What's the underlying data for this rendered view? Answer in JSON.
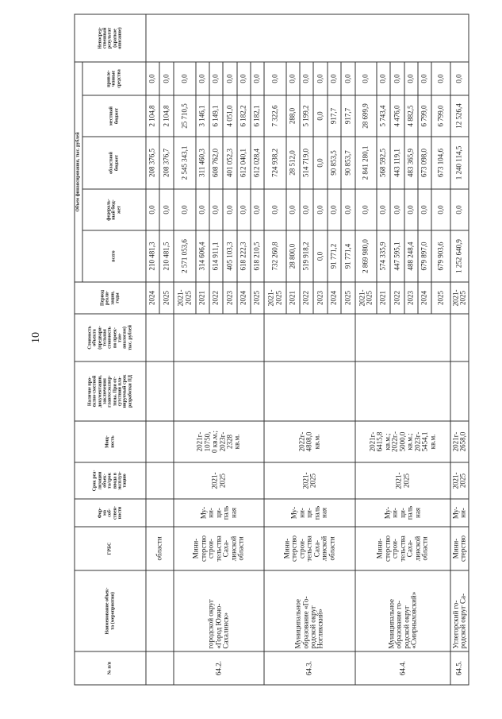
{
  "page_number": "10",
  "headers": {
    "num": "№ п/п",
    "name": "Наименование объек-\nта (мероприятия)",
    "grbs": "ГРБС",
    "form": "Фор-\nма\nсоб-\nствен-\nности",
    "term": "Срок реа-\nлизации\nобъек-\nта/срок\nввода в\nэксплуа-\nтацию",
    "capacity": "Мощ-\nность",
    "psd": "Наличие про-\nектно-сметной\nдокументации,\nзаключения\nглавгосэкспер-\nтизы. При от-\nсутствии пла-\nнируемый срок\nразработки ПД",
    "cost": "Стоимость\nобъекта\n(предвари-\nтельная\nстоимость\nпо проек-\nтам-\nаналогам)\nтыс. рублей",
    "period": "Период\nреали-\nзации,\nгоды",
    "funding": "Объем финансирования, тыс. рублей",
    "total": "всего",
    "federal": "федераль-\nный бюд-\nжет",
    "regional": "областной\nбюджет",
    "local": "местный\nбюджет",
    "attracted": "привле-\nченные\nсредства",
    "result": "Непосред-\nственный\nрезультат\n(краткое\nописание)"
  },
  "groups": [
    {
      "num": "",
      "name": "",
      "grbs": "области",
      "form": "",
      "term": "",
      "capacity": "",
      "rows": [
        {
          "period": "2024",
          "total": "210 481,3",
          "federal": "0,0",
          "regional": "208 376,5",
          "local": "2 104,8",
          "attracted": "0,0"
        },
        {
          "period": "2025",
          "total": "210 481,5",
          "federal": "0,0",
          "regional": "208 376,7",
          "local": "2 104,8",
          "attracted": "0,0"
        }
      ]
    },
    {
      "num": "64.2.",
      "name": "городской округ\n«Город Южно-\nСахалинск»",
      "grbs": "Мини-\nстерство\nстрои-\nтельства\nСаха-\nлинской\nобласти",
      "form": "Му-\nни-\nци-\nпаль\nная",
      "term": "2021-\n2025",
      "capacity": "2021г-\n10750,\n0 кв.м.;\n2023г-\n2328\nкв.м.",
      "rows": [
        {
          "period": "2021-\n2025",
          "total": "2 571 053,6",
          "federal": "0,0",
          "regional": "2 545 343,1",
          "local": "25 710,5",
          "attracted": "0,0"
        },
        {
          "period": "2021",
          "total": "314 606,4",
          "federal": "0,0",
          "regional": "311 460,3",
          "local": "3 146,1",
          "attracted": "0,0"
        },
        {
          "period": "2022",
          "total": "614 911,1",
          "federal": "0,0",
          "regional": "608 762,0",
          "local": "6 149,1",
          "attracted": "0,0"
        },
        {
          "period": "2023",
          "total": "405 103,3",
          "federal": "0,0",
          "regional": "401 052,3",
          "local": "4 051,0",
          "attracted": "0,0"
        },
        {
          "period": "2024",
          "total": "618 222,3",
          "federal": "0,0",
          "regional": "612 040,1",
          "local": "6 182,2",
          "attracted": "0,0"
        },
        {
          "period": "2025",
          "total": "618 210,5",
          "federal": "0,0",
          "regional": "612 028,4",
          "local": "6 182,1",
          "attracted": "0,0"
        }
      ]
    },
    {
      "num": "64.3.",
      "name": "Муниципальное\nобразование «Го-\nродской округ\nНогликский»",
      "grbs": "Мини-\nстерство\nстрои-\nтельства\nСаха-\nлинской\nобласти",
      "form": "Му-\nни-\nци-\nпаль\nная",
      "term": "2021-\n2025",
      "capacity": "2022г-\n4808,0\nкв.м.",
      "rows": [
        {
          "period": "2021-\n2025",
          "total": "732 260,8",
          "federal": "0,0",
          "regional": "724 938,2",
          "local": "7 322,6",
          "attracted": "0,0"
        },
        {
          "period": "2021",
          "total": "28 800,0",
          "federal": "0,0",
          "regional": "28 512,0",
          "local": "288,0",
          "attracted": "0,0"
        },
        {
          "period": "2022",
          "total": "519 918,2",
          "federal": "0,0",
          "regional": "514 719,0",
          "local": "5 199,2",
          "attracted": "0,0"
        },
        {
          "period": "2023",
          "total": "0,0",
          "federal": "0,0",
          "regional": "0,0",
          "local": "0,0",
          "attracted": "0,0"
        },
        {
          "period": "2024",
          "total": "91 771,2",
          "federal": "0,0",
          "regional": "90 853,5",
          "local": "917,7",
          "attracted": "0,0"
        },
        {
          "period": "2025",
          "total": "91 771,4",
          "federal": "0,0",
          "regional": "90 853,7",
          "local": "917,7",
          "attracted": "0,0"
        }
      ]
    },
    {
      "num": "64.4.",
      "name": "Муниципальное\nобразование го-\nродской округ\n«Смирныховский»",
      "grbs": "Мини-\nстерство\nстрои-\nтельства\nСаха-\nлинской\nобласти",
      "form": "Му-\nни-\nци-\nпаль\nная",
      "term": "2021-\n2025",
      "capacity": "2021г-\n6415,8\nкв.м.;\n2022г.-\n5000,0\nкв.м.;\n2023г-\n5454,1\nкв.м.",
      "rows": [
        {
          "period": "2021-\n2025",
          "total": "2 869 980,0",
          "federal": "0,0",
          "regional": "2 841 280,1",
          "local": "28 699,9",
          "attracted": "0,0"
        },
        {
          "period": "2021",
          "total": "574 335,9",
          "federal": "0,0",
          "regional": "568 592,5",
          "local": "5 743,4",
          "attracted": "0,0"
        },
        {
          "period": "2022",
          "total": "447 595,1",
          "federal": "0,0",
          "regional": "443 119,1",
          "local": "4 476,0",
          "attracted": "0,0"
        },
        {
          "period": "2023",
          "total": "488 248,4",
          "federal": "0,0",
          "regional": "483 365,9",
          "local": "4 882,5",
          "attracted": "0,0"
        },
        {
          "period": "2024",
          "total": "679 897,0",
          "federal": "0,0",
          "regional": "673 098,0",
          "local": "6 799,0",
          "attracted": "0,0"
        },
        {
          "period": "2025",
          "total": "679 903,6",
          "federal": "0,0",
          "regional": "673 104,6",
          "local": "6 799,0",
          "attracted": "0,0"
        }
      ]
    },
    {
      "num": "64.5.",
      "name": "Углегорский го-\nродской округ Са-",
      "grbs": "Мини-\nстерство",
      "form": "Му-\nни-",
      "term": "2021-\n2025",
      "capacity": "2021г-\n2658,0",
      "rows": [
        {
          "period": "2021-\n2025",
          "total": "1 252 640,9",
          "federal": "0,0",
          "regional": "1 240 114,5",
          "local": "12 526,4",
          "attracted": "0,0"
        }
      ]
    }
  ]
}
